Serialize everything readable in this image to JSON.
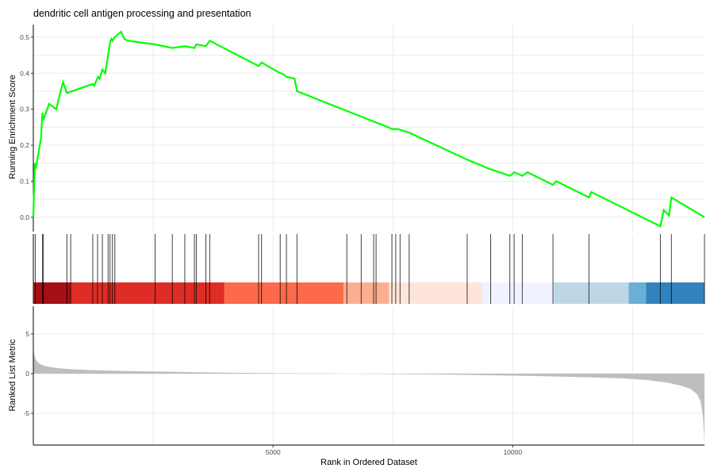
{
  "chart_data": {
    "type": "line",
    "title": "dendritic cell antigen processing and presentation",
    "xlabel": "Rank in Ordered Dataset",
    "xlim": [
      0,
      14000
    ],
    "x_ticks": [
      5000,
      10000
    ],
    "x_tick_labels": [
      "5000",
      "10000"
    ],
    "grid": true,
    "panels": [
      {
        "name": "running-enrichment",
        "ylabel": "Running Enrichment Score",
        "ylim": [
          -0.04,
          0.535
        ],
        "y_ticks": [
          0.0,
          0.1,
          0.2,
          0.3,
          0.4,
          0.5
        ],
        "y_tick_labels": [
          "0.0",
          "0.1",
          "0.2",
          "0.3",
          "0.4",
          "0.5"
        ],
        "line_color": "#00ff00",
        "series": [
          {
            "x": [
              0,
              30,
              60,
              160,
              190,
              210,
              330,
              480,
              550,
              620,
              700,
              1240,
              1270,
              1350,
              1380,
              1440,
              1500,
              1560,
              1580,
              1610,
              1630,
              1650,
              1700,
              1830,
              1900,
              1980,
              2540,
              2900,
              3160,
              3360,
              3400,
              3600,
              3680,
              4700,
              4760,
              5150,
              5180,
              5280,
              5450,
              5500,
              7400,
              7480,
              7600,
              7840,
              9050,
              9500,
              9940,
              10030,
              10200,
              10310,
              10840,
              10910,
              11590,
              11640,
              13080,
              13150,
              13260,
              13310,
              14000
            ],
            "y": [
              0.0,
              0.15,
              0.14,
              0.22,
              0.29,
              0.27,
              0.315,
              0.3,
              0.34,
              0.375,
              0.345,
              0.37,
              0.365,
              0.39,
              0.385,
              0.41,
              0.4,
              0.45,
              0.47,
              0.49,
              0.495,
              0.49,
              0.5,
              0.515,
              0.495,
              0.49,
              0.48,
              0.47,
              0.475,
              0.47,
              0.48,
              0.475,
              0.49,
              0.42,
              0.43,
              0.4,
              0.4,
              0.39,
              0.385,
              0.35,
              0.25,
              0.245,
              0.245,
              0.235,
              0.16,
              0.135,
              0.115,
              0.125,
              0.115,
              0.125,
              0.09,
              0.1,
              0.055,
              0.07,
              -0.025,
              0.02,
              0.005,
              0.055,
              0.0
            ]
          }
        ]
      },
      {
        "name": "hits",
        "hit_ranks": [
          40,
          190,
          210,
          700,
          780,
          1240,
          1340,
          1440,
          1560,
          1600,
          1650,
          1700,
          2540,
          2900,
          3160,
          3360,
          3400,
          3600,
          3680,
          4700,
          4760,
          5150,
          5280,
          5500,
          6540,
          6840,
          7100,
          7150,
          7480,
          7560,
          7650,
          7840,
          9050,
          9540,
          9940,
          10030,
          10200,
          10840,
          11590,
          13080,
          13310,
          14000
        ],
        "color_bands": [
          {
            "from": 0,
            "to": 780,
            "color": "#a50f15"
          },
          {
            "from": 780,
            "to": 3980,
            "color": "#de2d26"
          },
          {
            "from": 3980,
            "to": 6470,
            "color": "#fb6a4a"
          },
          {
            "from": 6470,
            "to": 7420,
            "color": "#fcae91"
          },
          {
            "from": 7420,
            "to": 9360,
            "color": "#fee5d9"
          },
          {
            "from": 9360,
            "to": 10860,
            "color": "#eff3ff"
          },
          {
            "from": 10860,
            "to": 12420,
            "color": "#bdd7e7"
          },
          {
            "from": 12420,
            "to": 12780,
            "color": "#6baed6"
          },
          {
            "from": 12780,
            "to": 14000,
            "color": "#3182bd"
          }
        ]
      },
      {
        "name": "ranked-list",
        "ylabel": "Ranked List Metric",
        "ylim": [
          -9,
          8.5
        ],
        "y_ticks": [
          5,
          0,
          -5
        ],
        "y_tick_labels": [
          "5",
          "0",
          "-5"
        ],
        "fill_color": "#bebebe",
        "series": [
          {
            "x": [
              0,
              20,
              50,
              100,
              150,
              200,
              300,
              500,
              800,
              1200,
              2000,
              3000,
              4000,
              5000,
              6000,
              6650,
              7500,
              8500,
              9500,
              10500,
              11500,
              12300,
              12800,
              13200,
              13500,
              13700,
              13850,
              13920,
              13970,
              14000
            ],
            "y": [
              3.5,
              2.4,
              1.8,
              1.4,
              1.2,
              1.05,
              0.9,
              0.7,
              0.55,
              0.45,
              0.32,
              0.22,
              0.12,
              0.06,
              0.02,
              0.0,
              -0.05,
              -0.1,
              -0.2,
              -0.3,
              -0.45,
              -0.6,
              -0.8,
              -1.1,
              -1.5,
              -1.9,
              -2.6,
              -3.5,
              -5.5,
              -8.8
            ]
          }
        ]
      }
    ]
  }
}
